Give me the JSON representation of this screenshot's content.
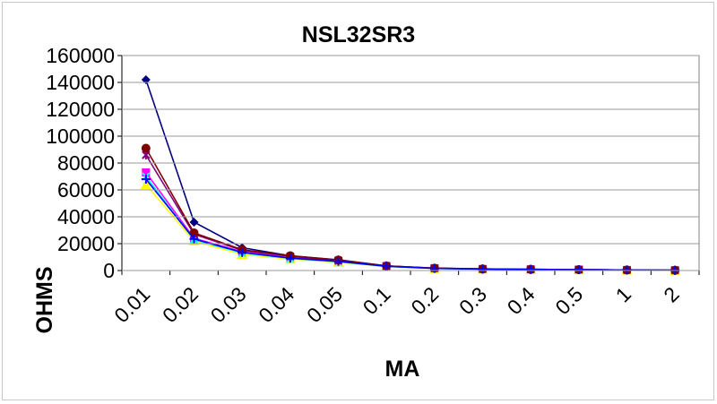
{
  "chart_data": {
    "type": "line",
    "title": "NSL32SR3",
    "xlabel": "MA",
    "ylabel": "OHMS",
    "categories": [
      "0.01",
      "0.02",
      "0.03",
      "0.04",
      "0.05",
      "0.1",
      "0.2",
      "0.3",
      "0.4",
      "0.5",
      "1",
      "2"
    ],
    "ylim": [
      0,
      160000
    ],
    "yticks": [
      0,
      20000,
      40000,
      60000,
      80000,
      100000,
      120000,
      140000,
      160000
    ],
    "grid": true,
    "legend": "none",
    "series": [
      {
        "color": "#000080",
        "marker": "diamond",
        "values": [
          142000,
          36000,
          17000,
          11000,
          8000,
          3500,
          1800,
          1200,
          900,
          700,
          400,
          200
        ]
      },
      {
        "color": "#ff00ff",
        "marker": "square",
        "values": [
          73000,
          24000,
          14000,
          9500,
          7000,
          3200,
          1600,
          1100,
          850,
          650,
          380,
          190
        ]
      },
      {
        "color": "#ffff00",
        "marker": "triangle",
        "values": [
          64000,
          22000,
          12000,
          8500,
          6200,
          3000,
          1500,
          1000,
          800,
          600,
          350,
          180
        ]
      },
      {
        "color": "#00ffff",
        "marker": "x",
        "values": [
          70000,
          23000,
          13000,
          9000,
          6500,
          3100,
          1550,
          1050,
          820,
          620,
          360,
          185
        ]
      },
      {
        "color": "#800080",
        "marker": "star",
        "values": [
          86000,
          27000,
          15000,
          10500,
          7500,
          3400,
          1700,
          1150,
          870,
          680,
          390,
          195
        ]
      },
      {
        "color": "#800000",
        "marker": "circle",
        "values": [
          91000,
          28000,
          15500,
          11000,
          7800,
          3400,
          1750,
          1180,
          880,
          690,
          395,
          198
        ]
      },
      {
        "color": "#0000ff",
        "marker": "plus",
        "values": [
          68000,
          23500,
          13500,
          9200,
          6800,
          3150,
          1580,
          1080,
          830,
          630,
          370,
          188
        ]
      }
    ]
  }
}
